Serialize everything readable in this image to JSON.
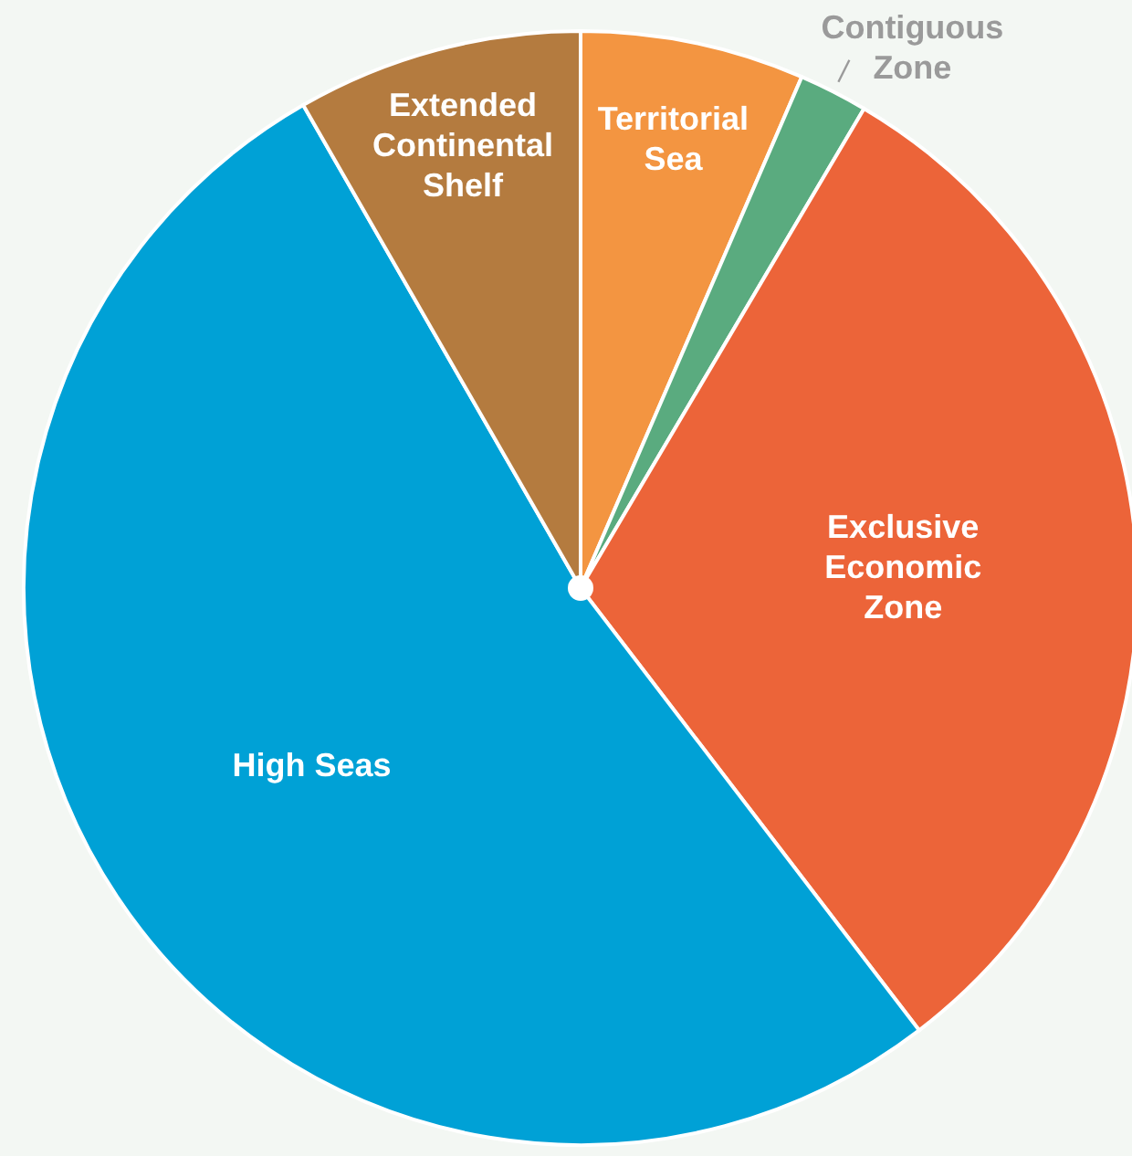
{
  "chart_data": {
    "type": "pie",
    "categories": [
      "Territorial\nSea",
      "Contiguous\nZone",
      "Exclusive\nEconomic\nZone",
      "High Seas",
      "Extended\nContinental\nShelf"
    ],
    "values": [
      6.5,
      2.0,
      31.1,
      52.1,
      8.3
    ],
    "colors": [
      "#f39541",
      "#5aab7f",
      "#ec6439",
      "#00a1d6",
      "#b47b3f"
    ]
  }
}
